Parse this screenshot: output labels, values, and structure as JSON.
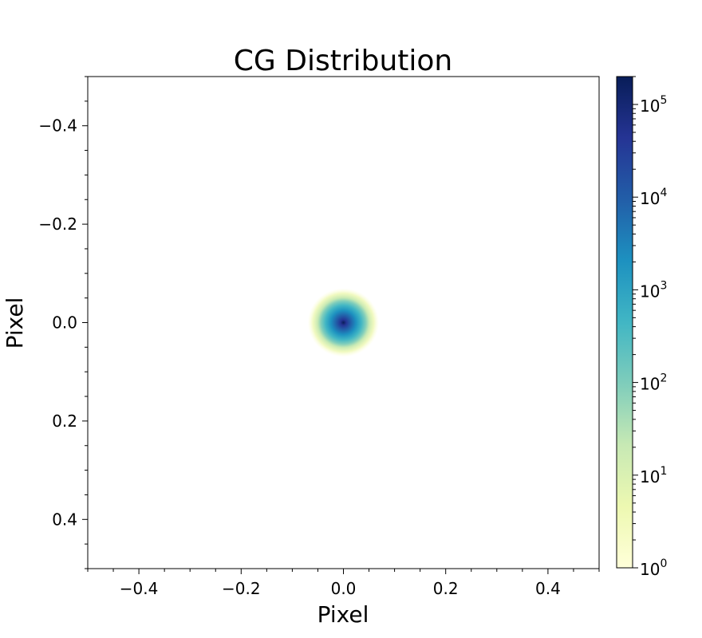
{
  "chart_data": {
    "type": "heatmap",
    "title": "CG Distribution",
    "xlabel": "Pixel",
    "ylabel": "Pixel",
    "xlim": [
      -0.5,
      0.5
    ],
    "ylim": [
      0.5,
      -0.5
    ],
    "y_inverted": true,
    "x_ticks": [
      -0.4,
      -0.2,
      0.0,
      0.2,
      0.4
    ],
    "x_tick_labels": [
      "−0.4",
      "−0.2",
      "0.0",
      "0.2",
      "0.4"
    ],
    "y_ticks": [
      -0.4,
      -0.2,
      0.0,
      0.2,
      0.4
    ],
    "y_tick_labels": [
      "−0.4",
      "−0.2",
      "0.0",
      "0.2",
      "0.4"
    ],
    "grid": false,
    "distribution": {
      "shape": "2d-gaussian",
      "center": [
        0.0,
        0.0
      ],
      "peak_count": 200000,
      "min_count": 1,
      "visible_extent_radius": 0.07
    },
    "colorbar": {
      "scale": "log",
      "colormap": "YlGnBu",
      "range": [
        1,
        200000
      ],
      "ticks": [
        1,
        10,
        100,
        1000,
        10000,
        100000
      ],
      "tick_labels": [
        {
          "base": "10",
          "exp": "0"
        },
        {
          "base": "10",
          "exp": "1"
        },
        {
          "base": "10",
          "exp": "2"
        },
        {
          "base": "10",
          "exp": "3"
        },
        {
          "base": "10",
          "exp": "4"
        },
        {
          "base": "10",
          "exp": "5"
        }
      ],
      "placement": "right"
    }
  }
}
